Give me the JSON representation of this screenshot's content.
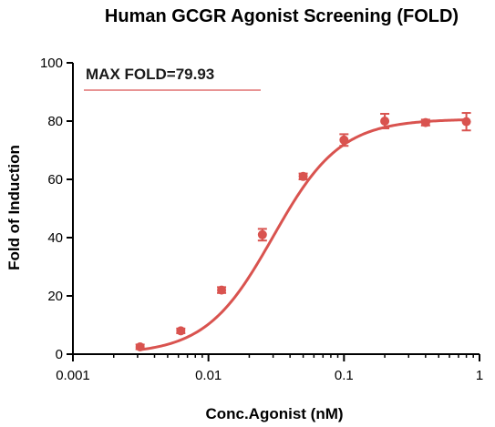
{
  "chart_data": {
    "type": "scatter",
    "title": "Human GCGR Agonist Screening (FOLD)",
    "xlabel": "Conc.Agonist (nM)",
    "ylabel": "Fold of Induction",
    "x_scale": "log",
    "xlim": [
      0.001,
      1
    ],
    "ylim": [
      0,
      100
    ],
    "x_ticks": [
      0.001,
      0.01,
      0.1,
      1
    ],
    "x_tick_labels": [
      "0.001",
      "0.01",
      "0.1",
      "1"
    ],
    "y_ticks": [
      0,
      20,
      40,
      60,
      80,
      100
    ],
    "y_tick_labels": [
      "0",
      "20",
      "40",
      "60",
      "80",
      "100"
    ],
    "annotation": "MAX FOLD=79.93",
    "series": [
      {
        "color": "#d9534f",
        "points": [
          {
            "x": 0.00313,
            "y": 2.5,
            "err": 0.8
          },
          {
            "x": 0.00625,
            "y": 8.0,
            "err": 0.8
          },
          {
            "x": 0.0125,
            "y": 22.0,
            "err": 1.0
          },
          {
            "x": 0.025,
            "y": 41.0,
            "err": 2.0
          },
          {
            "x": 0.05,
            "y": 61.0,
            "err": 1.0
          },
          {
            "x": 0.1,
            "y": 73.5,
            "err": 2.0
          },
          {
            "x": 0.2,
            "y": 80.0,
            "err": 2.5
          },
          {
            "x": 0.4,
            "y": 79.5,
            "err": 1.0
          },
          {
            "x": 0.8,
            "y": 79.8,
            "err": 3.0
          }
        ],
        "fit": {
          "bottom": 0,
          "top": 80.7,
          "ec50": 0.03,
          "hill": 1.75
        }
      }
    ],
    "grid": false,
    "legend": "none"
  }
}
